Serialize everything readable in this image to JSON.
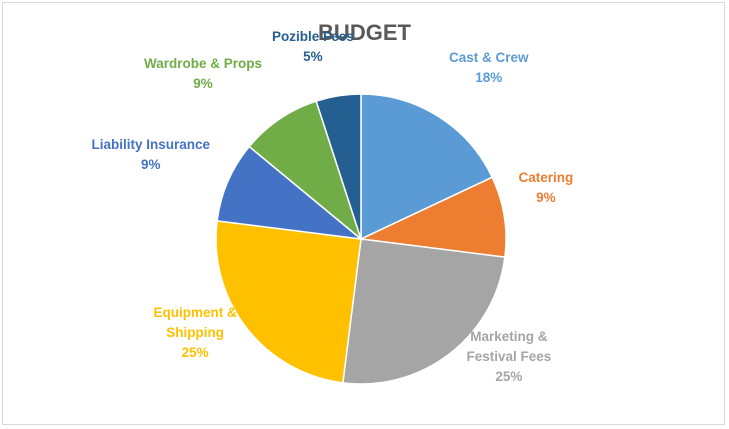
{
  "chart_data": {
    "type": "pie",
    "title": "BUDGET",
    "slices": [
      {
        "name": "Cast & Crew",
        "label_lines": [
          "Cast & Crew"
        ],
        "value": 18,
        "value_label": "18%",
        "color": "#5b9bd5"
      },
      {
        "name": "Catering",
        "label_lines": [
          "Catering"
        ],
        "value": 9,
        "value_label": "9%",
        "color": "#ed7d31"
      },
      {
        "name": "Marketing & Festival Fees",
        "label_lines": [
          "Marketing &",
          "Festival Fees"
        ],
        "value": 25,
        "value_label": "25%",
        "color": "#a5a5a5"
      },
      {
        "name": "Equipment & Shipping",
        "label_lines": [
          "Equipment &",
          "Shipping"
        ],
        "value": 25,
        "value_label": "25%",
        "color": "#ffc000"
      },
      {
        "name": "Liability Insurance",
        "label_lines": [
          "Liability Insurance"
        ],
        "value": 9,
        "value_label": "9%",
        "color": "#4472c4"
      },
      {
        "name": "Wardrobe & Props",
        "label_lines": [
          "Wardrobe & Props"
        ],
        "value": 9,
        "value_label": "9%",
        "color": "#70ad47"
      },
      {
        "name": "Pozible Fees",
        "label_lines": [
          "Pozible Fees"
        ],
        "value": 5,
        "value_label": "5%",
        "color": "#255e91"
      }
    ],
    "legend": "none",
    "start_angle": "12 o'clock, clockwise"
  }
}
